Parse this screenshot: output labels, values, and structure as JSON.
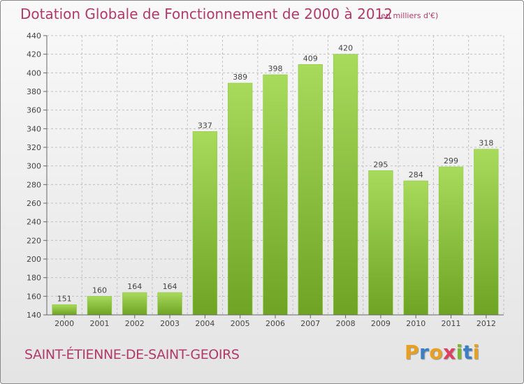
{
  "header": {
    "title": "Dotation Globale de Fonctionnement de 2000 à 2012",
    "unit": "(en milliers d'€)"
  },
  "footer": {
    "commune": "SAINT-ÉTIENNE-DE-SAINT-GEOIRS",
    "logo": {
      "letters": [
        "P",
        "r",
        "o",
        "x",
        "i",
        "t",
        "i"
      ],
      "colors": [
        "#e8a020",
        "#3a7fc4",
        "#e8a020",
        "#e04060",
        "#7ab830",
        "#3a7fc4",
        "#e8a020"
      ]
    }
  },
  "colors": {
    "bar_light": "#a8da5c",
    "bar_dark": "#6ea323",
    "title": "#b03a6a",
    "grid": "#c0c0c0"
  },
  "chart_data": {
    "type": "bar",
    "categories": [
      "2000",
      "2001",
      "2002",
      "2003",
      "2004",
      "2005",
      "2006",
      "2007",
      "2008",
      "2009",
      "2010",
      "2011",
      "2012"
    ],
    "values": [
      151,
      160,
      164,
      164,
      337,
      389,
      398,
      409,
      420,
      295,
      284,
      299,
      318
    ],
    "ylim": [
      140,
      440
    ],
    "yticks": [
      140,
      160,
      180,
      200,
      220,
      240,
      260,
      280,
      300,
      320,
      340,
      360,
      380,
      400,
      420,
      440
    ],
    "grid": true,
    "grid_style": "dashed"
  }
}
